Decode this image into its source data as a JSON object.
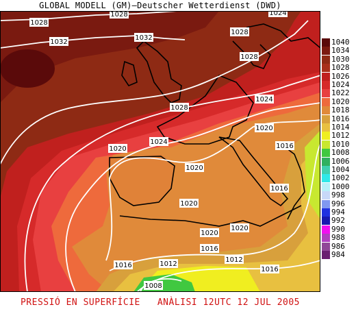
{
  "title": "GLOBAL MODELL (GM)—Deutscher Wetterdienst (DWD)",
  "footer": {
    "left": "PRESSIÓ EN SUPERFÍCIE",
    "right": "ANÀLISI 12UTC 12 JUL 2005"
  },
  "legend": [
    {
      "label": "1040",
      "color": "#5a0a0a"
    },
    {
      "label": "1034",
      "color": "#7a1a10"
    },
    {
      "label": "1030",
      "color": "#8e2a14"
    },
    {
      "label": "1028",
      "color": "#a8301a"
    },
    {
      "label": "1026",
      "color": "#c0201e"
    },
    {
      "label": "1024",
      "color": "#d62a2a"
    },
    {
      "label": "1022",
      "color": "#e84040"
    },
    {
      "label": "1020",
      "color": "#ee6a3c"
    },
    {
      "label": "1018",
      "color": "#e08a3a"
    },
    {
      "label": "1016",
      "color": "#d8a03c"
    },
    {
      "label": "1014",
      "color": "#e8c040"
    },
    {
      "label": "1012",
      "color": "#f0ee20"
    },
    {
      "label": "1010",
      "color": "#c8e830"
    },
    {
      "label": "1008",
      "color": "#40c840"
    },
    {
      "label": "1006",
      "color": "#30b060"
    },
    {
      "label": "1004",
      "color": "#40d0b0"
    },
    {
      "label": "1002",
      "color": "#30e8e8"
    },
    {
      "label": "1000",
      "color": "#b8f0f8"
    },
    {
      "label": "998",
      "color": "#c8d8f8"
    },
    {
      "label": "996",
      "color": "#8098f0"
    },
    {
      "label": "994",
      "color": "#2030e0"
    },
    {
      "label": "992",
      "color": "#1818b0"
    },
    {
      "label": "990",
      "color": "#f010f0"
    },
    {
      "label": "988",
      "color": "#b040c0"
    },
    {
      "label": "986",
      "color": "#904898"
    },
    {
      "label": "984",
      "color": "#6a2070"
    }
  ],
  "isobar_labels": [
    "1028",
    "1028",
    "1024",
    "1032",
    "1032",
    "1028",
    "1028",
    "1028",
    "1024",
    "1020",
    "1016",
    "1024",
    "1020",
    "1020",
    "1016",
    "1020",
    "1020",
    "1020",
    "1016",
    "1016",
    "1012",
    "1012",
    "1016",
    "1008"
  ]
}
